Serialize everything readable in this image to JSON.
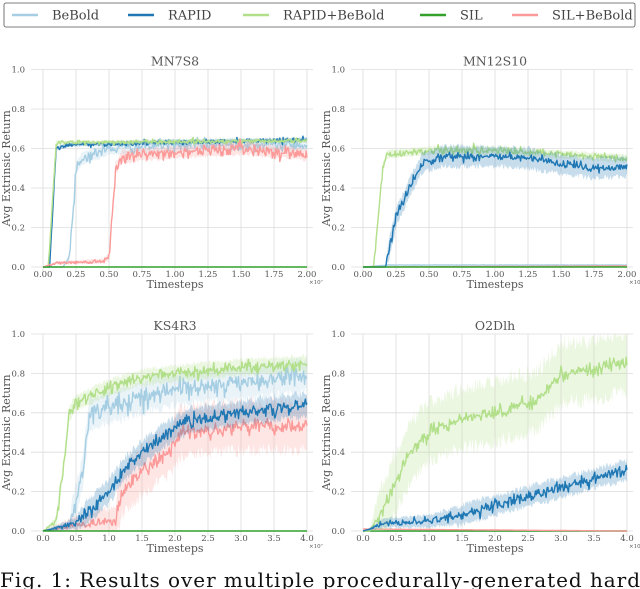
{
  "legend": {
    "items": [
      {
        "label": "BeBold",
        "color": "#a6cee3"
      },
      {
        "label": "RAPID",
        "color": "#1f78b4"
      },
      {
        "label": "RAPID+BeBold",
        "color": "#b2df8a"
      },
      {
        "label": "SIL",
        "color": "#33a02c"
      },
      {
        "label": "SIL+BeBold",
        "color": "#fb9a99"
      }
    ]
  },
  "caption": "Fig. 1: Results over multiple procedurally-generated hard",
  "chart_data": [
    {
      "type": "line",
      "title": "MN7S8",
      "xlabel": "Timesteps",
      "ylabel": "Avg Extrinsic Return",
      "x_scale_label": "×10⁷",
      "xlim": [
        0,
        2.0
      ],
      "ylim": [
        0,
        1.0
      ],
      "xticks": [
        "0.00",
        "0.25",
        "0.50",
        "0.75",
        "1.00",
        "1.25",
        "1.50",
        "1.75",
        "2.00"
      ],
      "yticks": [
        "0.0",
        "0.2",
        "0.4",
        "0.6",
        "0.8",
        "1.0"
      ],
      "grid": true,
      "series": [
        {
          "name": "BeBold",
          "points": [
            [
              0,
              0
            ],
            [
              0.15,
              0
            ],
            [
              0.2,
              0.05
            ],
            [
              0.25,
              0.5
            ],
            [
              0.3,
              0.55
            ],
            [
              0.5,
              0.6
            ],
            [
              1.0,
              0.62
            ],
            [
              2.0,
              0.62
            ]
          ],
          "noise": 0.015,
          "band": 0.03
        },
        {
          "name": "RAPID",
          "points": [
            [
              0,
              0
            ],
            [
              0.05,
              0
            ],
            [
              0.1,
              0.6
            ],
            [
              0.2,
              0.62
            ],
            [
              2.0,
              0.645
            ]
          ],
          "noise": 0.006,
          "band": 0.01
        },
        {
          "name": "RAPID+BeBold",
          "points": [
            [
              0,
              0
            ],
            [
              0.04,
              0
            ],
            [
              0.1,
              0.63
            ],
            [
              2.0,
              0.64
            ]
          ],
          "noise": 0.006,
          "band": 0.01
        },
        {
          "name": "SIL+BeBold",
          "points": [
            [
              0,
              0
            ],
            [
              0.1,
              0.02
            ],
            [
              0.45,
              0.03
            ],
            [
              0.5,
              0.05
            ],
            [
              0.55,
              0.5
            ],
            [
              0.6,
              0.56
            ],
            [
              1.0,
              0.58
            ],
            [
              1.5,
              0.6
            ],
            [
              2.0,
              0.57
            ]
          ],
          "noise": 0.015,
          "band": 0.03
        },
        {
          "name": "SIL",
          "points": [
            [
              0,
              0
            ],
            [
              2.0,
              0
            ]
          ],
          "noise": 0,
          "band": 0
        }
      ]
    },
    {
      "type": "line",
      "title": "MN12S10",
      "xlabel": "Timesteps",
      "ylabel": "Avg Extrinsic Return",
      "x_scale_label": "×10⁷",
      "xlim": [
        0,
        2.0
      ],
      "ylim": [
        0,
        1.0
      ],
      "xticks": [
        "0.00",
        "0.25",
        "0.50",
        "0.75",
        "1.00",
        "1.25",
        "1.50",
        "1.75",
        "2.00"
      ],
      "yticks": [
        "0.0",
        "0.2",
        "0.4",
        "0.6",
        "0.8",
        "1.0"
      ],
      "grid": true,
      "series": [
        {
          "name": "BeBold",
          "points": [
            [
              0,
              0
            ],
            [
              0.2,
              0.01
            ],
            [
              2.0,
              0.01
            ]
          ],
          "noise": 0.004,
          "band": 0.005
        },
        {
          "name": "SIL+BeBold",
          "points": [
            [
              0,
              0
            ],
            [
              2.0,
              0.005
            ]
          ],
          "noise": 0.003,
          "band": 0.004
        },
        {
          "name": "RAPID+BeBold",
          "points": [
            [
              0,
              0
            ],
            [
              0.08,
              0
            ],
            [
              0.15,
              0.5
            ],
            [
              0.18,
              0.57
            ],
            [
              0.5,
              0.59
            ],
            [
              1.0,
              0.59
            ],
            [
              1.5,
              0.57
            ],
            [
              2.0,
              0.55
            ]
          ],
          "noise": 0.01,
          "band": 0.02
        },
        {
          "name": "RAPID",
          "points": [
            [
              0,
              0
            ],
            [
              0.17,
              0
            ],
            [
              0.2,
              0.1
            ],
            [
              0.25,
              0.25
            ],
            [
              0.35,
              0.4
            ],
            [
              0.45,
              0.53
            ],
            [
              0.6,
              0.56
            ],
            [
              1.0,
              0.56
            ],
            [
              1.25,
              0.55
            ],
            [
              1.5,
              0.52
            ],
            [
              1.75,
              0.5
            ],
            [
              2.0,
              0.51
            ]
          ],
          "noise": 0.012,
          "band": 0.05
        },
        {
          "name": "SIL",
          "points": [
            [
              0,
              0
            ],
            [
              2.0,
              0
            ]
          ],
          "noise": 0,
          "band": 0
        }
      ]
    },
    {
      "type": "line",
      "title": "KS4R3",
      "xlabel": "Timesteps",
      "ylabel": "Avg Extrinsic Return",
      "x_scale_label": "×10⁷",
      "xlim": [
        0,
        4.0
      ],
      "ylim": [
        0,
        1.0
      ],
      "xticks": [
        "0.0",
        "0.5",
        "1.0",
        "1.5",
        "2.0",
        "2.5",
        "3.0",
        "3.5",
        "4.0"
      ],
      "yticks": [
        "0.0",
        "0.2",
        "0.4",
        "0.6",
        "0.8",
        "1.0"
      ],
      "grid": true,
      "series": [
        {
          "name": "BeBold",
          "points": [
            [
              0,
              0
            ],
            [
              0.4,
              0.02
            ],
            [
              0.6,
              0.3
            ],
            [
              0.7,
              0.6
            ],
            [
              1.0,
              0.63
            ],
            [
              1.5,
              0.68
            ],
            [
              2.0,
              0.72
            ],
            [
              3.0,
              0.75
            ],
            [
              4.0,
              0.79
            ]
          ],
          "noise": 0.025,
          "band": 0.08
        },
        {
          "name": "RAPID+BeBold",
          "points": [
            [
              0,
              0
            ],
            [
              0.2,
              0.05
            ],
            [
              0.3,
              0.3
            ],
            [
              0.4,
              0.6
            ],
            [
              0.5,
              0.65
            ],
            [
              1.0,
              0.73
            ],
            [
              1.5,
              0.78
            ],
            [
              2.0,
              0.8
            ],
            [
              3.0,
              0.83
            ],
            [
              4.0,
              0.85
            ]
          ],
          "noise": 0.015,
          "band": 0.04
        },
        {
          "name": "SIL+BeBold",
          "points": [
            [
              0,
              0
            ],
            [
              0.5,
              0.03
            ],
            [
              1.1,
              0.05
            ],
            [
              1.2,
              0.2
            ],
            [
              1.5,
              0.3
            ],
            [
              1.9,
              0.4
            ],
            [
              2.1,
              0.5
            ],
            [
              3.0,
              0.53
            ],
            [
              4.0,
              0.53
            ]
          ],
          "noise": 0.02,
          "band": 0.12
        },
        {
          "name": "RAPID",
          "points": [
            [
              0,
              0
            ],
            [
              0.5,
              0.04
            ],
            [
              1.0,
              0.2
            ],
            [
              1.2,
              0.3
            ],
            [
              1.5,
              0.4
            ],
            [
              1.9,
              0.5
            ],
            [
              2.2,
              0.56
            ],
            [
              3.0,
              0.6
            ],
            [
              4.0,
              0.64
            ]
          ],
          "noise": 0.018,
          "band": 0.06
        },
        {
          "name": "SIL",
          "points": [
            [
              0,
              0
            ],
            [
              4.0,
              0
            ]
          ],
          "noise": 0,
          "band": 0
        }
      ]
    },
    {
      "type": "line",
      "title": "O2Dlh",
      "xlabel": "Timesteps",
      "ylabel": "Avg Extrinsic Return",
      "x_scale_label": "×10⁷",
      "xlim": [
        0,
        4.0
      ],
      "ylim": [
        0,
        1.0
      ],
      "xticks": [
        "0.0",
        "0.5",
        "1.0",
        "1.5",
        "2.0",
        "2.5",
        "3.0",
        "3.5",
        "4.0"
      ],
      "yticks": [
        "0.0",
        "0.2",
        "0.4",
        "0.6",
        "0.8",
        "1.0"
      ],
      "grid": true,
      "series": [
        {
          "name": "BeBold",
          "points": [
            [
              0,
              0
            ],
            [
              4.0,
              0
            ]
          ],
          "noise": 0,
          "band": 0
        },
        {
          "name": "SIL",
          "points": [
            [
              0,
              0
            ],
            [
              4.0,
              0
            ]
          ],
          "noise": 0,
          "band": 0
        },
        {
          "name": "SIL+BeBold",
          "points": [
            [
              0,
              0.01
            ],
            [
              4.0,
              0
            ]
          ],
          "noise": 0,
          "band": 0
        },
        {
          "name": "RAPID+BeBold",
          "points": [
            [
              0,
              0
            ],
            [
              0.1,
              0
            ],
            [
              0.3,
              0.1
            ],
            [
              0.5,
              0.25
            ],
            [
              0.7,
              0.4
            ],
            [
              1.0,
              0.5
            ],
            [
              1.5,
              0.57
            ],
            [
              2.0,
              0.6
            ],
            [
              2.5,
              0.65
            ],
            [
              2.7,
              0.68
            ],
            [
              3.0,
              0.8
            ],
            [
              4.0,
              0.85
            ]
          ],
          "noise": 0.018,
          "band": 0.15
        },
        {
          "name": "RAPID",
          "points": [
            [
              0,
              0
            ],
            [
              0.1,
              0.01
            ],
            [
              0.3,
              0.04
            ],
            [
              1.0,
              0.05
            ],
            [
              1.5,
              0.08
            ],
            [
              2.0,
              0.13
            ],
            [
              3.0,
              0.22
            ],
            [
              4.0,
              0.31
            ]
          ],
          "noise": 0.015,
          "band": 0.05
        }
      ]
    }
  ]
}
